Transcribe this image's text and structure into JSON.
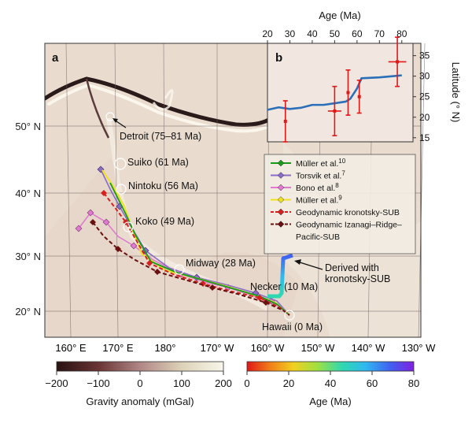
{
  "panel_a_label": "a",
  "panel_b_label": "b",
  "lat_labels": [
    "50° N",
    "40° N",
    "30° N",
    "20° N"
  ],
  "lon_labels": [
    "160° E",
    "170° E",
    "180°",
    "170° W",
    "160° W",
    "150° W",
    "140° W",
    "130° W"
  ],
  "places": [
    {
      "name": "Detroit (75–81 Ma)"
    },
    {
      "name": "Suiko (61 Ma)"
    },
    {
      "name": "Nintoku (56 Ma)"
    },
    {
      "name": "Koko (49 Ma)"
    },
    {
      "name": "Midway (28 Ma)"
    },
    {
      "name": "Necker (10 Ma)"
    },
    {
      "name": "Hawaii (0 Ma)"
    }
  ],
  "derived_label_1": "Derived with",
  "derived_label_2": "kronotsky-SUB",
  "legend": [
    {
      "label": "Müller et al.",
      "sup": "10",
      "color": "#1a9a1a",
      "style": "solid"
    },
    {
      "label": "Torsvik et al.",
      "sup": "7",
      "color": "#8a6cc8",
      "style": "solid"
    },
    {
      "label": "Bono et al.",
      "sup": "8",
      "color": "#e07ad0",
      "style": "solid"
    },
    {
      "label": "Müller et al.",
      "sup": "9",
      "color": "#f0e020",
      "style": "solid"
    },
    {
      "label": "Geodynamic kronotsky-SUB",
      "sup": "",
      "color": "#d62020",
      "style": "dashed"
    },
    {
      "label": "Geodynamic Izanagi–Ridge–",
      "sup": "",
      "color": "#6a1010",
      "style": "dashed"
    },
    {
      "label": "Pacific-SUB",
      "sup": "",
      "color": "",
      "style": "none"
    }
  ],
  "inset_chart": {
    "xlabel": "Age (Ma)",
    "ylabel": "Latitude (° N)",
    "x_ticks": [
      "20",
      "30",
      "40",
      "50",
      "60",
      "70",
      "80"
    ],
    "y_ticks": [
      "15",
      "20",
      "25",
      "30",
      "35"
    ],
    "xlim": [
      20,
      85
    ],
    "ylim": [
      14,
      38
    ]
  },
  "chart_data": {
    "type": "line",
    "xlabel": "Age (Ma)",
    "ylabel": "Latitude (° N)",
    "xlim": [
      20,
      85
    ],
    "ylim": [
      14,
      38
    ],
    "series": [
      {
        "x": [
          20,
          25,
          30,
          35,
          40,
          45,
          50,
          55,
          57,
          60,
          62,
          70,
          80
        ],
        "y": [
          21.8,
          22.4,
          22.0,
          22.3,
          23.0,
          23.0,
          23.4,
          23.8,
          24.5,
          27.0,
          29.5,
          29.7,
          30.2
        ]
      }
    ],
    "observations": [
      {
        "age": 28,
        "lat": 19,
        "age_err": 0,
        "lat_err": 5
      },
      {
        "age": 50,
        "lat": 21.5,
        "age_err": 3,
        "lat_err": 6
      },
      {
        "age": 56,
        "lat": 26,
        "age_err": 0,
        "lat_err": 5.5
      },
      {
        "age": 61,
        "lat": 25,
        "age_err": 0,
        "lat_err": 4
      },
      {
        "age": 78,
        "lat": 33.5,
        "age_err": 4,
        "lat_err": 6
      }
    ]
  },
  "colorbar_gravity": {
    "label": "Gravity anomaly (mGal)",
    "ticks": [
      "−200",
      "−100",
      "0",
      "100",
      "200"
    ],
    "colors": [
      "#2a1212",
      "#6a3434",
      "#b08686",
      "#ddd2b8",
      "#f8f6ea"
    ]
  },
  "colorbar_age": {
    "label": "Age (Ma)",
    "ticks": [
      "0",
      "20",
      "40",
      "60",
      "80"
    ],
    "colors": [
      "#e01818",
      "#f08018",
      "#f0d020",
      "#a0e040",
      "#30d8b0",
      "#30b8f0",
      "#4060f0",
      "#8020e0"
    ]
  }
}
